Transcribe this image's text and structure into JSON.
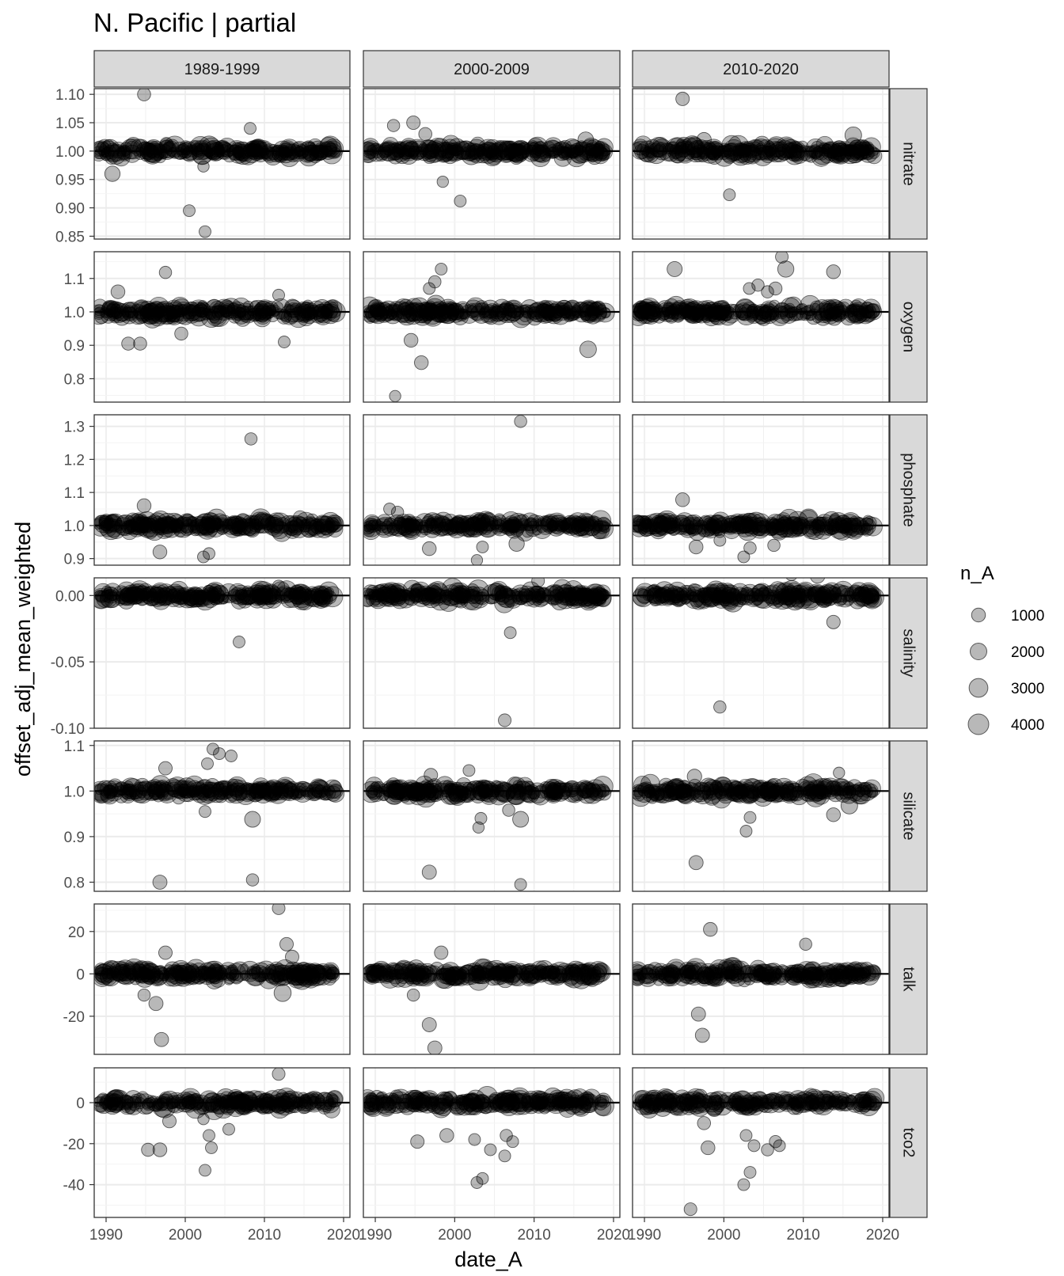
{
  "chart_data": {
    "type": "scatter",
    "title": "N. Pacific | partial",
    "xlabel": "date_A",
    "ylabel": "offset_adj_mean_weighted",
    "x_ticks": [
      1990,
      2000,
      2010,
      2020
    ],
    "x_range": [
      1988.5,
      2020.8
    ],
    "grid": true,
    "legend": {
      "title": "n_A",
      "position": "right",
      "sizes": [
        1000,
        2000,
        3000,
        4000
      ]
    },
    "columns": [
      "1989-1999",
      "2000-2009",
      "2010-2020"
    ],
    "rows": [
      {
        "name": "nitrate",
        "reference": 1.0,
        "ylim": [
          0.845,
          1.11
        ],
        "y_ticks": [
          "0.85",
          "0.90",
          "0.95",
          "1.00",
          "1.05",
          "1.10"
        ],
        "outliers": [
          [
            [
              1994.8,
              1.1,
              800
            ],
            [
              1990.8,
              0.96,
              1500
            ],
            [
              2000.5,
              0.895,
              500
            ],
            [
              2002.5,
              0.858,
              500
            ],
            [
              2008.2,
              1.04,
              500
            ],
            [
              2002.3,
              0.973,
              400
            ]
          ],
          [
            [
              1992.3,
              1.045,
              600
            ],
            [
              1994.8,
              1.05,
              900
            ],
            [
              1996.3,
              1.03,
              800
            ],
            [
              1998.5,
              0.946,
              400
            ],
            [
              2000.7,
              0.912,
              500
            ],
            [
              2016.5,
              1.02,
              1600
            ]
          ],
          [
            [
              1994.8,
              1.092,
              900
            ],
            [
              2000.7,
              0.923,
              500
            ],
            [
              2016.3,
              1.028,
              2000
            ],
            [
              1997.5,
              1.02,
              1200
            ]
          ]
        ]
      },
      {
        "name": "oxygen",
        "reference": 1.0,
        "ylim": [
          0.73,
          1.18
        ],
        "y_ticks": [
          "0.8",
          "0.9",
          "1.0",
          "1.1"
        ],
        "outliers": [
          [
            [
              1997.5,
              1.118,
              600
            ],
            [
              1992.8,
              0.905,
              800
            ],
            [
              1994.3,
              0.905,
              800
            ],
            [
              1999.5,
              0.935,
              800
            ],
            [
              2011.8,
              1.05,
              500
            ],
            [
              2012.5,
              0.91,
              500
            ],
            [
              1991.5,
              1.06,
              1000
            ]
          ],
          [
            [
              1992.5,
              0.748,
              400
            ],
            [
              1994.5,
              0.915,
              1000
            ],
            [
              1995.8,
              0.848,
              1000
            ],
            [
              1997.5,
              1.09,
              600
            ],
            [
              1998.3,
              1.128,
              500
            ],
            [
              2016.8,
              0.888,
              2000
            ],
            [
              1996.8,
              1.07,
              500
            ]
          ],
          [
            [
              1993.8,
              1.128,
              1400
            ],
            [
              2004.3,
              1.08,
              600
            ],
            [
              2006.5,
              1.07,
              800
            ],
            [
              2007.3,
              1.165,
              700
            ],
            [
              2007.8,
              1.128,
              1800
            ],
            [
              2013.8,
              1.12,
              1000
            ],
            [
              2005.5,
              1.06,
              600
            ],
            [
              2003.2,
              1.07,
              500
            ]
          ]
        ]
      },
      {
        "name": "phosphate",
        "reference": 1.0,
        "ylim": [
          0.88,
          1.335
        ],
        "y_ticks": [
          "0.9",
          "1.0",
          "1.1",
          "1.2",
          "1.3"
        ],
        "outliers": [
          [
            [
              1994.8,
              1.06,
              1000
            ],
            [
              1996.8,
              0.92,
              1000
            ],
            [
              2002.3,
              0.905,
              500
            ],
            [
              2003.0,
              0.915,
              500
            ],
            [
              2008.3,
              1.262,
              600
            ]
          ],
          [
            [
              1991.8,
              1.05,
              500
            ],
            [
              1992.8,
              1.04,
              600
            ],
            [
              1996.8,
              0.93,
              1000
            ],
            [
              2002.8,
              0.895,
              400
            ],
            [
              2003.5,
              0.935,
              500
            ],
            [
              2008.3,
              1.315,
              600
            ],
            [
              2007.8,
              0.945,
              1500
            ]
          ],
          [
            [
              1994.8,
              1.078,
              1000
            ],
            [
              1996.5,
              0.935,
              1000
            ],
            [
              2002.5,
              0.905,
              500
            ],
            [
              2003.3,
              0.932,
              600
            ],
            [
              2006.3,
              0.94,
              600
            ],
            [
              1999.5,
              0.955,
              500
            ]
          ]
        ]
      },
      {
        "name": "salinity",
        "reference": 0.0,
        "ylim": [
          -0.1,
          0.0133
        ],
        "y_ticks": [
          "-0.10",
          "-0.05",
          "0.00"
        ],
        "outliers": [
          [
            [
              2006.8,
              -0.035,
              500
            ],
            [
              2011.8,
              0.007,
              600
            ]
          ],
          [
            [
              2006.3,
              -0.094,
              700
            ],
            [
              2007.0,
              -0.028,
              500
            ],
            [
              2010.5,
              0.011,
              700
            ]
          ],
          [
            [
              1998.8,
              0.028,
              500
            ],
            [
              1999.5,
              0.019,
              500
            ],
            [
              1999.5,
              -0.084,
              600
            ],
            [
              2008.5,
              0.016,
              700
            ],
            [
              2011.8,
              0.015,
              1400
            ],
            [
              2013.8,
              -0.02,
              900
            ],
            [
              1999.8,
              0.005,
              500
            ]
          ]
        ]
      },
      {
        "name": "silicate",
        "reference": 1.0,
        "ylim": [
          0.78,
          1.11
        ],
        "y_ticks": [
          "0.8",
          "0.9",
          "1.0",
          "1.1"
        ],
        "outliers": [
          [
            [
              1996.8,
              0.8,
              1100
            ],
            [
              1997.5,
              1.05,
              900
            ],
            [
              2002.5,
              0.955,
              500
            ],
            [
              2003.5,
              1.092,
              500
            ],
            [
              2004.3,
              1.082,
              500
            ],
            [
              2005.8,
              1.077,
              500
            ],
            [
              2008.5,
              0.805,
              600
            ],
            [
              2008.5,
              0.938,
              1700
            ],
            [
              2002.8,
              1.06,
              500
            ]
          ],
          [
            [
              1996.8,
              0.822,
              1100
            ],
            [
              1997.0,
              1.035,
              900
            ],
            [
              2001.8,
              1.045,
              500
            ],
            [
              2003.3,
              0.94,
              500
            ],
            [
              2003.0,
              0.92,
              400
            ],
            [
              2008.3,
              0.795,
              500
            ],
            [
              2008.3,
              0.938,
              1700
            ],
            [
              2006.8,
              0.958,
              600
            ]
          ],
          [
            [
              1996.5,
              0.843,
              1100
            ],
            [
              1996.3,
              1.032,
              1200
            ],
            [
              2002.8,
              0.912,
              500
            ],
            [
              2003.3,
              0.942,
              500
            ],
            [
              2013.8,
              0.948,
              1000
            ],
            [
              2015.8,
              0.968,
              2000
            ],
            [
              2014.5,
              1.04,
              400
            ]
          ]
        ]
      },
      {
        "name": "talk",
        "reference": 0.0,
        "ylim": [
          -38,
          33
        ],
        "y_ticks": [
          "-20",
          "0",
          "20"
        ],
        "outliers": [
          [
            [
              1996.3,
              -14,
              1100
            ],
            [
              1997.0,
              -31,
              1100
            ],
            [
              1997.5,
              10,
              900
            ],
            [
              2011.8,
              31,
              700
            ],
            [
              2012.3,
              -9,
              2200
            ],
            [
              2012.8,
              14,
              900
            ],
            [
              2013.5,
              8,
              900
            ],
            [
              1994.8,
              -10,
              600
            ]
          ],
          [
            [
              1996.8,
              -24,
              1100
            ],
            [
              1997.5,
              -35,
              1100
            ],
            [
              1998.3,
              10,
              900
            ],
            [
              1994.8,
              -10,
              600
            ]
          ],
          [
            [
              1996.8,
              -19,
              1100
            ],
            [
              1997.3,
              -29,
              1100
            ],
            [
              1998.3,
              21,
              1000
            ],
            [
              2010.3,
              14,
              600
            ]
          ]
        ]
      },
      {
        "name": "tco2",
        "reference": 0.0,
        "ylim": [
          -56,
          17
        ],
        "y_ticks": [
          "-40",
          "-20",
          "0"
        ],
        "outliers": [
          [
            [
              1995.3,
              -23,
              800
            ],
            [
              1996.8,
              -23,
              1000
            ],
            [
              1998.0,
              -9,
              900
            ],
            [
              2002.5,
              -33,
              500
            ],
            [
              2003.0,
              -16,
              500
            ],
            [
              2003.3,
              -22,
              500
            ],
            [
              2005.5,
              -13,
              500
            ],
            [
              2011.8,
              14,
              700
            ],
            [
              2002.3,
              -8,
              400
            ]
          ],
          [
            [
              1995.3,
              -19,
              900
            ],
            [
              1999.0,
              -16,
              1000
            ],
            [
              2002.5,
              -18,
              500
            ],
            [
              2002.8,
              -39,
              500
            ],
            [
              2003.5,
              -37,
              500
            ],
            [
              2004.5,
              -23,
              500
            ],
            [
              2006.3,
              -26,
              500
            ],
            [
              2007.3,
              -19,
              500
            ],
            [
              2006.5,
              -16,
              600
            ]
          ],
          [
            [
              1995.8,
              -52,
              700
            ],
            [
              1997.0,
              3,
              1200
            ],
            [
              1997.5,
              -10,
              800
            ],
            [
              1998.0,
              -22,
              1000
            ],
            [
              2002.5,
              -40,
              500
            ],
            [
              2003.3,
              -34,
              500
            ],
            [
              2003.8,
              -21,
              500
            ],
            [
              2005.5,
              -23,
              600
            ],
            [
              2006.5,
              -19,
              600
            ],
            [
              2007.0,
              -21,
              500
            ],
            [
              1998.8,
              -3,
              1500
            ],
            [
              2002.8,
              -16,
              500
            ]
          ]
        ]
      }
    ]
  }
}
